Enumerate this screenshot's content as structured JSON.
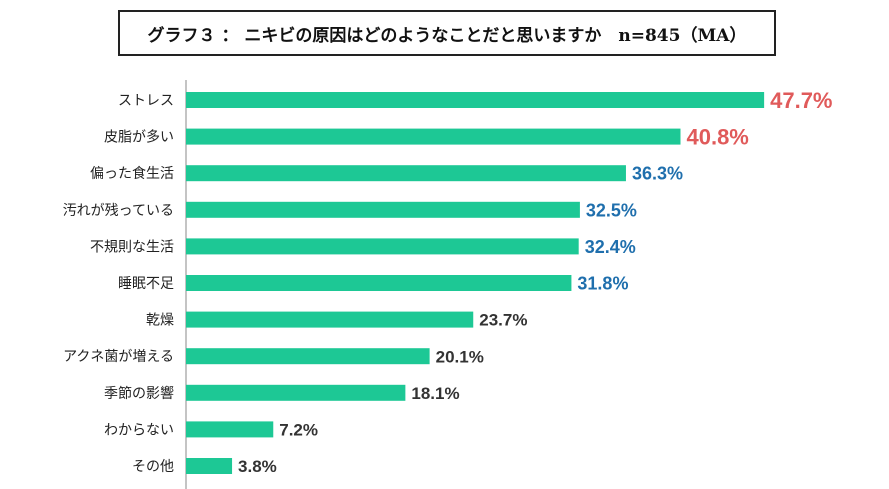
{
  "chart_data": {
    "type": "bar",
    "orientation": "horizontal",
    "title": "グラフ３ ： ニキビの原因はどのようなことだと思いますか　n=845（MA）",
    "xlabel": "",
    "ylabel": "",
    "xlim": [
      0,
      50
    ],
    "grid": false,
    "categories": [
      "ストレス",
      "皮脂が多い",
      "偏った食生活",
      "汚れが残っている",
      "不規則な生活",
      "睡眠不足",
      "乾燥",
      "アクネ菌が増える",
      "季節の影響",
      "わからない",
      "その他"
    ],
    "values": [
      47.7,
      40.8,
      36.3,
      32.5,
      32.4,
      31.8,
      23.7,
      20.1,
      18.1,
      7.2,
      3.8
    ],
    "value_labels": [
      "47.7%",
      "40.8%",
      "36.3%",
      "32.5%",
      "32.4%",
      "31.8%",
      "23.7%",
      "20.1%",
      "18.1%",
      "7.2%",
      "3.8%"
    ],
    "label_tiers": [
      "top",
      "top",
      "high",
      "high",
      "high",
      "high",
      "normal",
      "normal",
      "normal",
      "normal",
      "normal"
    ]
  },
  "colors": {
    "bar": "#1dc895",
    "top": "#e05a5a",
    "high": "#1f6fad",
    "normal": "#333333",
    "axis": "#888888"
  }
}
